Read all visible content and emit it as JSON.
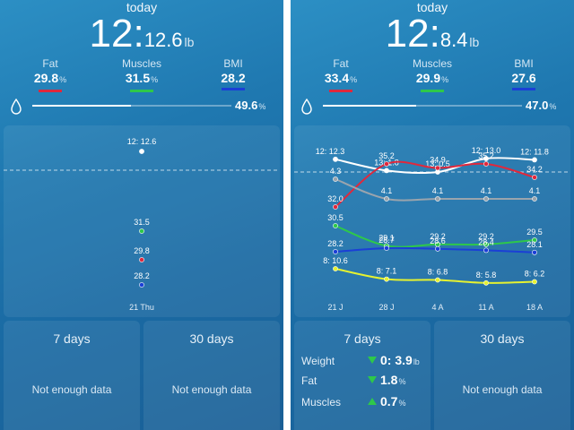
{
  "colors": {
    "fat": "#e0283c",
    "muscles": "#2ec84a",
    "bmi": "#1b3fd6",
    "water": "#ffffff"
  },
  "panels": [
    {
      "today_label": "today",
      "weight": {
        "st": "12:",
        "lb": "12.6",
        "unit": "lb"
      },
      "fat": {
        "label": "Fat",
        "value": "29.8",
        "unit": "%"
      },
      "muscles": {
        "label": "Muscles",
        "value": "31.5",
        "unit": "%"
      },
      "bmi": {
        "label": "BMI",
        "value": "28.2"
      },
      "water": {
        "value": "49.6",
        "unit": "%",
        "fraction": 0.496,
        "icon": "water-drop-icon"
      },
      "summary_7": {
        "title": "7 days",
        "empty": "Not enough data"
      },
      "summary_30": {
        "title": "30 days",
        "empty": "Not enough data"
      }
    },
    {
      "today_label": "today",
      "weight": {
        "st": "12:",
        "lb": "8.4",
        "unit": "lb"
      },
      "fat": {
        "label": "Fat",
        "value": "33.4",
        "unit": "%"
      },
      "muscles": {
        "label": "Muscles",
        "value": "29.9",
        "unit": "%"
      },
      "bmi": {
        "label": "BMI",
        "value": "27.6"
      },
      "water": {
        "value": "47.0",
        "unit": "%",
        "fraction": 0.47,
        "icon": "water-drop-icon"
      },
      "summary_7": {
        "title": "7 days",
        "rows": [
          {
            "label": "Weight",
            "direction": "down",
            "value": "0: 3.9",
            "unit": "lb"
          },
          {
            "label": "Fat",
            "direction": "down",
            "value": "1.8",
            "unit": "%"
          },
          {
            "label": "Muscles",
            "direction": "up",
            "value": "0.7",
            "unit": "%"
          }
        ]
      },
      "summary_30": {
        "title": "30 days",
        "empty": "Not enough data"
      }
    }
  ],
  "chart_data": [
    {
      "type": "line",
      "categories": [
        "21 Thu"
      ],
      "series": [
        {
          "color": "#ffffff",
          "values": [
            12.6
          ],
          "labels": [
            "12: 12.6"
          ]
        },
        {
          "color": "#2ec84a",
          "values": [
            31.5
          ],
          "labels": [
            "31.5"
          ]
        },
        {
          "color": "#e0283c",
          "values": [
            29.8
          ],
          "labels": [
            "29.8"
          ]
        },
        {
          "color": "#1b3fd6",
          "values": [
            28.2
          ],
          "labels": [
            "28.2"
          ]
        }
      ]
    },
    {
      "type": "line",
      "categories": [
        "21 J",
        "28 J",
        "4 A",
        "11 A",
        "18 A"
      ],
      "series": [
        {
          "color": "#ffffff",
          "values": [
            12.3,
            1.8,
            0.5,
            13.0,
            11.8
          ],
          "labels": [
            "12: 12.3",
            "13: 1.8",
            "13: 0.5",
            "12: 13.0",
            "12: 11.8"
          ]
        },
        {
          "color": "#e0283c",
          "values": [
            32.0,
            35.2,
            34.9,
            35.2,
            34.2
          ],
          "labels": [
            "32.0",
            "35.2",
            "34.9",
            "35.2",
            "34.2"
          ]
        },
        {
          "color": "#9aa4ad",
          "values": [
            4.3,
            4.1,
            4.1,
            4.1,
            4.1
          ],
          "labels": [
            "4.3",
            "4.1",
            "4.1",
            "4.1",
            "4.1"
          ]
        },
        {
          "color": "#2ec84a",
          "values": [
            30.5,
            29.1,
            29.2,
            29.2,
            29.5
          ],
          "labels": [
            "30.5",
            "29.1",
            "29.2",
            "29.2",
            "29.5"
          ]
        },
        {
          "color": "#1b3fd6",
          "values": [
            28.2,
            28.7,
            28.6,
            28.4,
            28.1
          ],
          "labels": [
            "28.2",
            "28.7",
            "28.6",
            "28.4",
            "28.1"
          ]
        },
        {
          "color": "#e6f230",
          "values": [
            10.6,
            7.1,
            6.8,
            5.8,
            6.2
          ],
          "labels": [
            "8: 10.6",
            "8: 7.1",
            "8: 6.8",
            "8: 5.8",
            "8: 6.2"
          ]
        }
      ]
    }
  ]
}
